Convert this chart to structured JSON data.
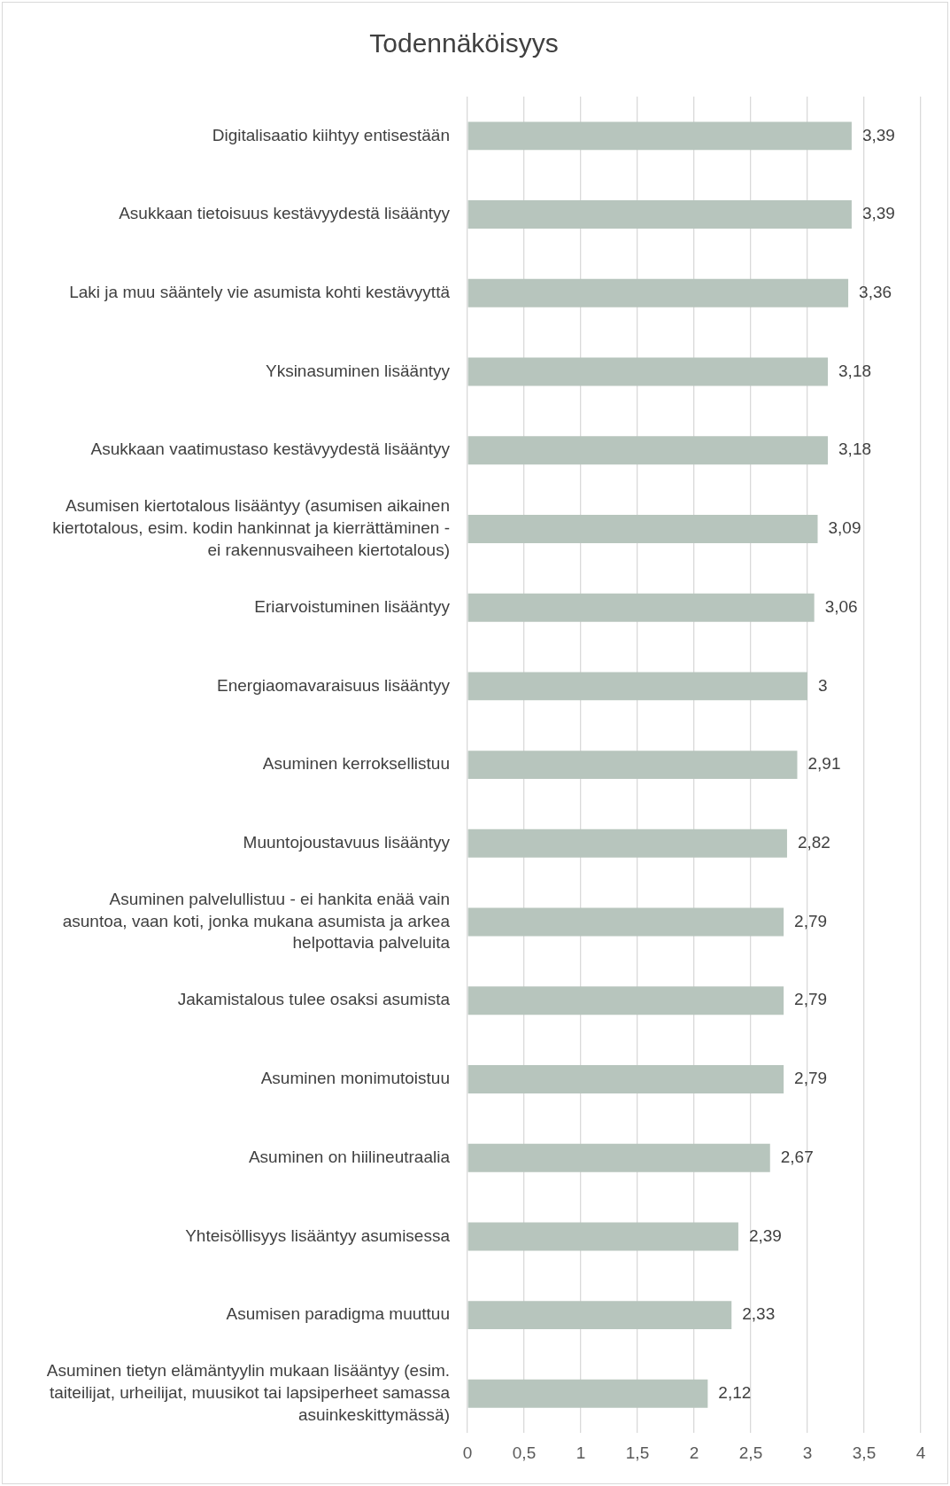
{
  "chart_data": {
    "type": "bar",
    "orientation": "horizontal",
    "title": "Todennäköisyys",
    "categories": [
      "Digitalisaatio kiihtyy entisestään",
      "Asukkaan tietoisuus kestävyydestä lisääntyy",
      "Laki ja muu sääntely vie asumista kohti kestävyyttä",
      "Yksinasuminen lisääntyy",
      "Asukkaan vaatimustaso kestävyydestä lisääntyy",
      "Asumisen kiertotalous lisääntyy (asumisen aikainen kiertotalous, esim. kodin hankinnat ja kierrättäminen - ei rakennusvaiheen kiertotalous)",
      "Eriarvoistuminen lisääntyy",
      "Energiaomavaraisuus lisääntyy",
      "Asuminen kerroksellistuu",
      "Muuntojoustavuus lisääntyy",
      "Asuminen palvelullistuu - ei hankita enää vain asuntoa, vaan koti, jonka mukana asumista ja arkea helpottavia palveluita",
      "Jakamistalous tulee osaksi asumista",
      "Asuminen monimutoistuu",
      "Asuminen on hiilineutraalia",
      "Yhteisöllisyys lisääntyy asumisessa",
      "Asumisen paradigma muuttuu",
      "Asuminen tietyn elämäntyylin mukaan lisääntyy (esim. taiteilijat, urheilijat, muusikot tai lapsiperheet samassa asuinkeskittymässä)"
    ],
    "values": [
      3.39,
      3.39,
      3.36,
      3.18,
      3.18,
      3.09,
      3.06,
      3,
      2.91,
      2.82,
      2.79,
      2.79,
      2.79,
      2.67,
      2.39,
      2.33,
      2.12
    ],
    "value_labels": [
      "3,39",
      "3,39",
      "3,36",
      "3,18",
      "3,18",
      "3,09",
      "3,06",
      "3",
      "2,91",
      "2,82",
      "2,79",
      "2,79",
      "2,79",
      "2,67",
      "2,39",
      "2,33",
      "2,12"
    ],
    "color": "#b7c5bd",
    "xlim": [
      0,
      4
    ],
    "xticks": [
      {
        "value": 0,
        "label": "0"
      },
      {
        "value": 0.5,
        "label": "0,5"
      },
      {
        "value": 1,
        "label": "1"
      },
      {
        "value": 1.5,
        "label": "1,5"
      },
      {
        "value": 2,
        "label": "2"
      },
      {
        "value": 2.5,
        "label": "2,5"
      },
      {
        "value": 3,
        "label": "3"
      },
      {
        "value": 3.5,
        "label": "3,5"
      },
      {
        "value": 4,
        "label": "4"
      }
    ],
    "grid": "x",
    "legend": false
  }
}
